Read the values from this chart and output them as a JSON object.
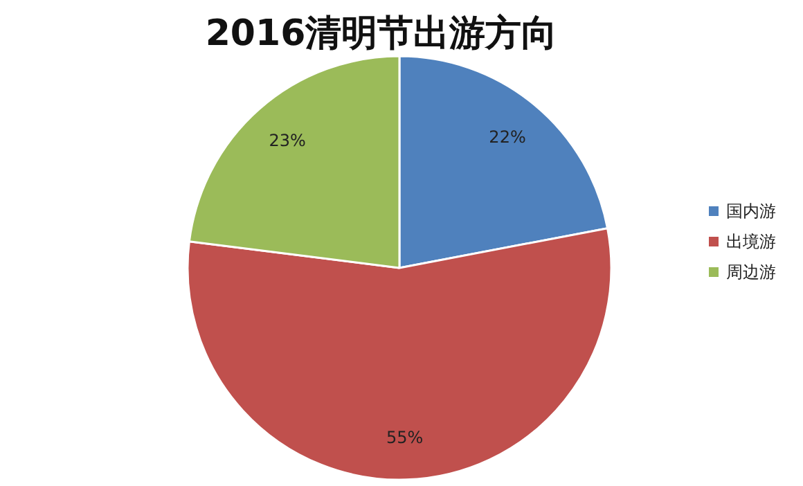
{
  "chart_data": {
    "type": "pie",
    "title": "2016清明节出游方向",
    "categories": [
      "国内游",
      "出境游",
      "周边游"
    ],
    "values": [
      22,
      55,
      23
    ],
    "colors": [
      "#4f81bd",
      "#c0504d",
      "#9bbb59"
    ],
    "value_labels": [
      "22%",
      "55%",
      "23%"
    ],
    "legend": "right"
  }
}
